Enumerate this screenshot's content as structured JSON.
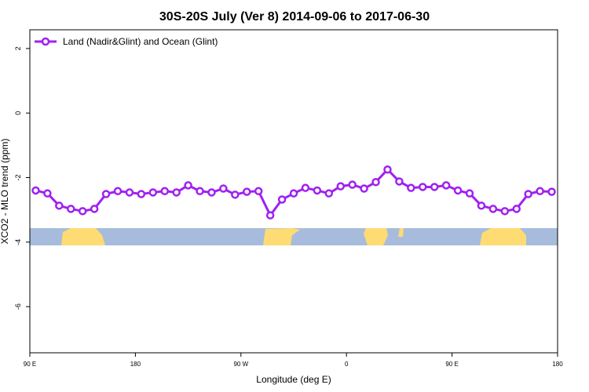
{
  "chart_data": {
    "type": "line",
    "title": "30S-20S July (Ver 8)   2014-09-06 to 2017-06-30",
    "x_label": "Longitude (deg E)",
    "y_label": "XCO2 - MLO trend (ppm)",
    "x": [
      95,
      105,
      115,
      125,
      135,
      145,
      155,
      165,
      175,
      185,
      195,
      205,
      215,
      225,
      235,
      245,
      255,
      265,
      275,
      285,
      295,
      305,
      315,
      325,
      335,
      345,
      355,
      365,
      375,
      385,
      395,
      405,
      415,
      425,
      435,
      445,
      455,
      465,
      475,
      485,
      495,
      505,
      515,
      525,
      535
    ],
    "series": [
      {
        "name": "Land (Nadir&Glint) and Ocean (Glint)",
        "color": "#a020f0",
        "values": [
          -2.4,
          -2.49,
          -2.87,
          -2.97,
          -3.04,
          -2.97,
          -2.51,
          -2.42,
          -2.46,
          -2.51,
          -2.46,
          -2.42,
          -2.46,
          -2.24,
          -2.42,
          -2.46,
          -2.34,
          -2.53,
          -2.44,
          -2.42,
          -3.17,
          -2.68,
          -2.49,
          -2.32,
          -2.4,
          -2.49,
          -2.27,
          -2.22,
          -2.34,
          -2.14,
          -1.75,
          -2.12,
          -2.32,
          -2.29,
          -2.29,
          -2.24,
          -2.4,
          -2.49,
          -2.87,
          -2.97,
          -3.04,
          -2.97,
          -2.51,
          -2.42,
          -2.44
        ]
      }
    ],
    "xlim": [
      90,
      540
    ],
    "xticks": [
      {
        "value": 90,
        "label": "90 E"
      },
      {
        "value": 180,
        "label": "180"
      },
      {
        "value": 270,
        "label": "90 W"
      },
      {
        "value": 360,
        "label": "0"
      },
      {
        "value": 450,
        "label": "90 E"
      },
      {
        "value": 540,
        "label": "180"
      }
    ],
    "ylim": [
      -7.43,
      2.58
    ],
    "yticks": [
      2,
      0,
      -2,
      -4,
      -6
    ],
    "legend": "top-left"
  }
}
